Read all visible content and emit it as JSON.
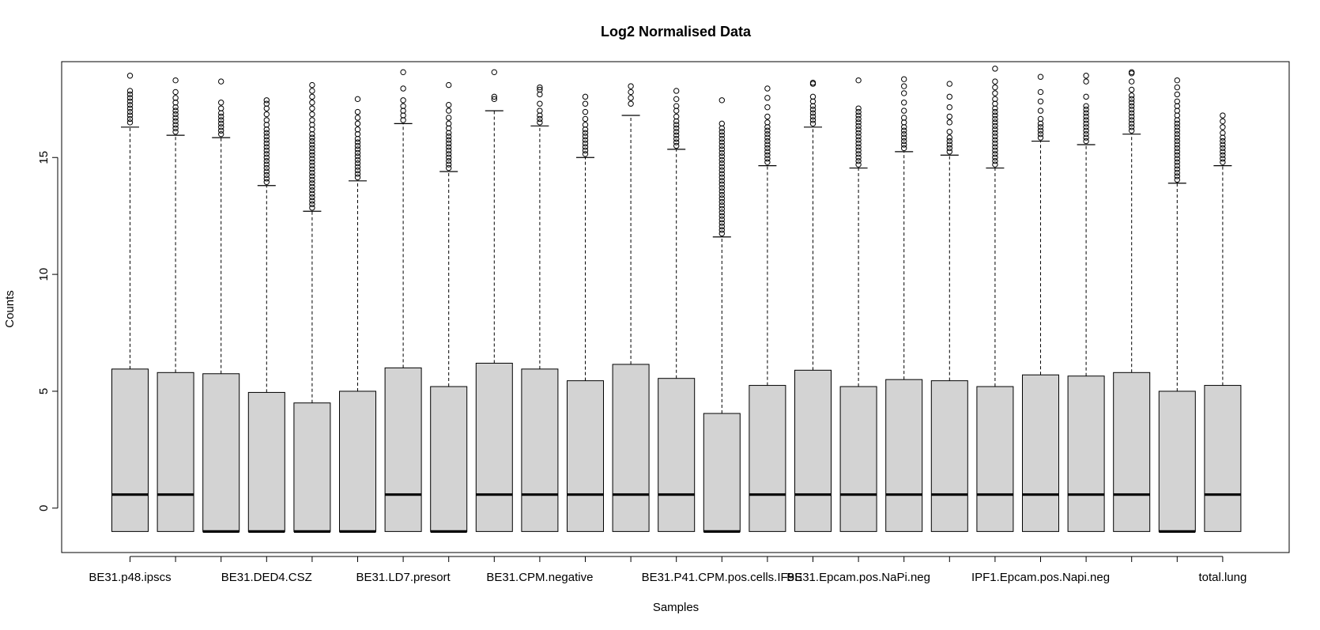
{
  "chart_data": {
    "type": "boxplot",
    "title": "Log2 Normalised Data",
    "xlabel": "Samples",
    "ylabel": "Counts",
    "ylim": [
      -1.9,
      19.1
    ],
    "yticks": [
      0,
      5,
      10,
      15
    ],
    "grid": false,
    "colors": {
      "box_fill": "#d3d3d3",
      "stroke": "#000000",
      "background": "#ffffff"
    },
    "shown_labels": [
      "BE31.p48.ipscs",
      "BE31.DED4.CSZ",
      "BE31.LD7.presort",
      "BE31.CPM.negative",
      "BE31.P41.CPM.pos.cells.IF9S",
      "BE31.Epcam.pos.NaPi.neg",
      "IPF1.Epcam.pos.Napi.neg",
      "total.lung"
    ],
    "label_positions": [
      1,
      4,
      7,
      10,
      14,
      17,
      21,
      25
    ],
    "boxes": [
      {
        "min": -1.0,
        "q1": -1.0,
        "median": 0.58,
        "q3": 5.95,
        "max": 16.3,
        "outliers": [
          16.5,
          16.65,
          16.8,
          16.95,
          17.1,
          17.25,
          17.4,
          17.55,
          17.7,
          17.85,
          18.5
        ]
      },
      {
        "min": -1.0,
        "q1": -1.0,
        "median": 0.58,
        "q3": 5.8,
        "max": 15.95,
        "outliers": [
          16.1,
          16.25,
          16.4,
          16.55,
          16.7,
          16.85,
          17.0,
          17.15,
          17.35,
          17.55,
          17.8,
          18.3
        ]
      },
      {
        "min": -1.0,
        "q1": -1.0,
        "median": -1.0,
        "q3": 5.75,
        "max": 15.85,
        "outliers": [
          16.0,
          16.15,
          16.3,
          16.45,
          16.6,
          16.75,
          16.9,
          17.1,
          17.35,
          18.25
        ]
      },
      {
        "min": -1.0,
        "q1": -1.0,
        "median": -1.0,
        "q3": 4.95,
        "max": 13.8,
        "outliers": [
          13.95,
          14.1,
          14.25,
          14.4,
          14.55,
          14.7,
          14.85,
          15.0,
          15.15,
          15.3,
          15.45,
          15.6,
          15.75,
          15.9,
          16.05,
          16.2,
          16.4,
          16.6,
          16.85,
          17.1,
          17.3,
          17.45
        ]
      },
      {
        "min": -1.0,
        "q1": -1.0,
        "median": -1.0,
        "q3": 4.5,
        "max": 12.7,
        "outliers": [
          12.85,
          13.0,
          13.15,
          13.3,
          13.45,
          13.6,
          13.75,
          13.9,
          14.05,
          14.2,
          14.35,
          14.5,
          14.65,
          14.8,
          14.95,
          15.1,
          15.25,
          15.4,
          15.55,
          15.7,
          15.85,
          16.0,
          16.2,
          16.4,
          16.6,
          16.85,
          17.1,
          17.35,
          17.6,
          17.85,
          18.1
        ]
      },
      {
        "min": -1.0,
        "q1": -1.0,
        "median": -1.0,
        "q3": 5.0,
        "max": 14.0,
        "outliers": [
          14.15,
          14.3,
          14.45,
          14.6,
          14.75,
          14.9,
          15.05,
          15.2,
          15.35,
          15.5,
          15.65,
          15.8,
          16.0,
          16.2,
          16.45,
          16.7,
          16.95,
          17.5
        ]
      },
      {
        "min": -1.0,
        "q1": -1.0,
        "median": 0.58,
        "q3": 6.0,
        "max": 16.45,
        "outliers": [
          16.6,
          16.8,
          17.0,
          17.2,
          17.45,
          17.95,
          18.65
        ]
      },
      {
        "min": -1.0,
        "q1": -1.0,
        "median": -1.0,
        "q3": 5.2,
        "max": 14.4,
        "outliers": [
          14.55,
          14.7,
          14.85,
          15.0,
          15.15,
          15.3,
          15.45,
          15.6,
          15.75,
          15.9,
          16.05,
          16.25,
          16.45,
          16.7,
          17.0,
          17.25,
          18.1
        ]
      },
      {
        "min": -1.0,
        "q1": -1.0,
        "median": 0.58,
        "q3": 6.2,
        "max": 17.0,
        "outliers": [
          17.5,
          17.6,
          18.65
        ]
      },
      {
        "min": -1.0,
        "q1": -1.0,
        "median": 0.58,
        "q3": 5.95,
        "max": 16.35,
        "outliers": [
          16.5,
          16.65,
          16.8,
          17.0,
          17.3,
          17.7,
          17.9,
          18.0
        ]
      },
      {
        "min": -1.0,
        "q1": -1.0,
        "median": 0.58,
        "q3": 5.45,
        "max": 15.0,
        "outliers": [
          15.15,
          15.3,
          15.45,
          15.6,
          15.75,
          15.9,
          16.05,
          16.2,
          16.4,
          16.65,
          16.95,
          17.3,
          17.6
        ]
      },
      {
        "min": -1.0,
        "q1": -1.0,
        "median": 0.58,
        "q3": 6.15,
        "max": 16.8,
        "outliers": [
          17.3,
          17.55,
          17.8,
          18.05
        ]
      },
      {
        "min": -1.0,
        "q1": -1.0,
        "median": 0.58,
        "q3": 5.55,
        "max": 15.35,
        "outliers": [
          15.5,
          15.65,
          15.8,
          15.95,
          16.1,
          16.25,
          16.4,
          16.55,
          16.75,
          17.0,
          17.2,
          17.5,
          17.85
        ]
      },
      {
        "min": -1.0,
        "q1": -1.0,
        "median": -1.0,
        "q3": 4.05,
        "max": 11.6,
        "outliers": [
          11.75,
          11.9,
          12.05,
          12.2,
          12.35,
          12.5,
          12.65,
          12.8,
          12.95,
          13.1,
          13.25,
          13.4,
          13.55,
          13.7,
          13.85,
          14.0,
          14.15,
          14.3,
          14.45,
          14.6,
          14.75,
          14.9,
          15.05,
          15.2,
          15.35,
          15.5,
          15.65,
          15.8,
          15.95,
          16.1,
          16.25,
          16.45,
          17.45
        ]
      },
      {
        "min": -1.0,
        "q1": -1.0,
        "median": 0.58,
        "q3": 5.25,
        "max": 14.65,
        "outliers": [
          14.8,
          14.95,
          15.1,
          15.25,
          15.4,
          15.55,
          15.7,
          15.85,
          16.0,
          16.15,
          16.3,
          16.5,
          16.75,
          17.15,
          17.55,
          17.95
        ]
      },
      {
        "min": -1.0,
        "q1": -1.0,
        "median": 0.58,
        "q3": 5.9,
        "max": 16.3,
        "outliers": [
          16.45,
          16.6,
          16.75,
          16.9,
          17.05,
          17.2,
          17.4,
          17.6,
          18.15,
          18.2
        ]
      },
      {
        "min": -1.0,
        "q1": -1.0,
        "median": 0.58,
        "q3": 5.2,
        "max": 14.55,
        "outliers": [
          14.7,
          14.85,
          15.0,
          15.15,
          15.3,
          15.45,
          15.6,
          15.75,
          15.9,
          16.05,
          16.2,
          16.35,
          16.5,
          16.65,
          16.8,
          16.95,
          17.1,
          18.3
        ]
      },
      {
        "min": -1.0,
        "q1": -1.0,
        "median": 0.58,
        "q3": 5.5,
        "max": 15.25,
        "outliers": [
          15.4,
          15.55,
          15.7,
          15.85,
          16.0,
          16.15,
          16.3,
          16.5,
          16.7,
          17.0,
          17.35,
          17.75,
          18.05,
          18.35
        ]
      },
      {
        "min": -1.0,
        "q1": -1.0,
        "median": 0.58,
        "q3": 5.45,
        "max": 15.1,
        "outliers": [
          15.25,
          15.4,
          15.55,
          15.7,
          15.85,
          16.1,
          16.5,
          16.75,
          17.15,
          17.6,
          18.15
        ]
      },
      {
        "min": -1.0,
        "q1": -1.0,
        "median": 0.58,
        "q3": 5.2,
        "max": 14.55,
        "outliers": [
          14.7,
          14.85,
          15.0,
          15.15,
          15.3,
          15.45,
          15.6,
          15.75,
          15.9,
          16.05,
          16.2,
          16.35,
          16.5,
          16.65,
          16.8,
          16.95,
          17.1,
          17.3,
          17.5,
          17.75,
          18.0,
          18.25,
          18.8
        ]
      },
      {
        "min": -1.0,
        "q1": -1.0,
        "median": 0.58,
        "q3": 5.7,
        "max": 15.7,
        "outliers": [
          15.85,
          16.0,
          16.15,
          16.3,
          16.45,
          16.65,
          17.0,
          17.4,
          17.8,
          18.45
        ]
      },
      {
        "min": -1.0,
        "q1": -1.0,
        "median": 0.58,
        "q3": 5.65,
        "max": 15.55,
        "outliers": [
          15.7,
          15.85,
          16.0,
          16.15,
          16.3,
          16.45,
          16.6,
          16.75,
          16.9,
          17.05,
          17.2,
          17.6,
          18.25,
          18.5
        ]
      },
      {
        "min": -1.0,
        "q1": -1.0,
        "median": 0.58,
        "q3": 5.8,
        "max": 16.0,
        "outliers": [
          16.15,
          16.3,
          16.45,
          16.6,
          16.75,
          16.9,
          17.05,
          17.2,
          17.35,
          17.5,
          17.65,
          17.9,
          18.25,
          18.6,
          18.65
        ]
      },
      {
        "min": -1.0,
        "q1": -1.0,
        "median": -1.0,
        "q3": 5.0,
        "max": 13.9,
        "outliers": [
          14.05,
          14.2,
          14.35,
          14.5,
          14.65,
          14.8,
          14.95,
          15.1,
          15.25,
          15.4,
          15.55,
          15.7,
          15.85,
          16.0,
          16.15,
          16.3,
          16.45,
          16.6,
          16.8,
          17.0,
          17.2,
          17.4,
          17.7,
          18.0,
          18.3
        ]
      },
      {
        "min": -1.0,
        "q1": -1.0,
        "median": 0.58,
        "q3": 5.25,
        "max": 14.65,
        "outliers": [
          14.8,
          14.95,
          15.1,
          15.25,
          15.4,
          15.55,
          15.7,
          15.85,
          16.05,
          16.3,
          16.55,
          16.8
        ]
      }
    ]
  }
}
